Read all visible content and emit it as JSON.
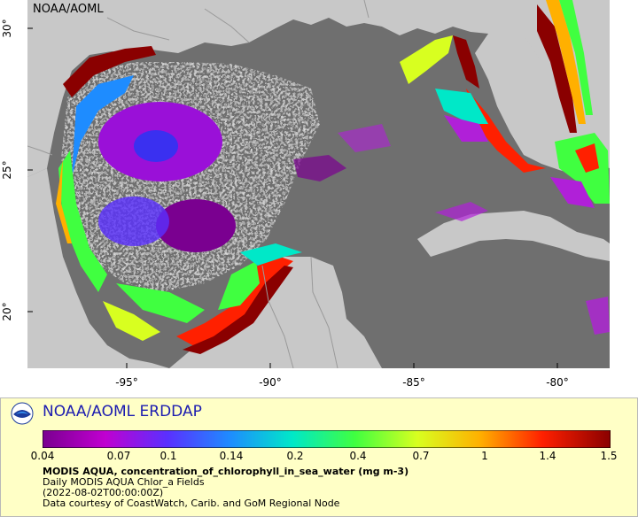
{
  "map": {
    "credit_top_left": "NOAA/AOML",
    "x_ticks": [
      {
        "label": "-95°",
        "lon": -95
      },
      {
        "label": "-90°",
        "lon": -90
      },
      {
        "label": "-85°",
        "lon": -85
      },
      {
        "label": "-80°",
        "lon": -80
      }
    ],
    "y_ticks": [
      {
        "label": "30°",
        "lat": 30
      },
      {
        "label": "25°",
        "lat": 25
      },
      {
        "label": "20°",
        "lat": 20
      }
    ],
    "lon_range": [
      -98.5,
      -78.2
    ],
    "lat_range": [
      18.0,
      31.0
    ],
    "colors": {
      "ocean_no_data": "#6f6f6f",
      "land": "#c8c8c8",
      "borders": "#9a9a9a"
    }
  },
  "legend": {
    "brand": "NOAA/AOML ERDDAP",
    "colorbar_labels": [
      "0.04",
      "0.07",
      "0.1",
      "0.14",
      "0.2",
      "0.4",
      "0.7",
      "1",
      "1.4",
      "1.5"
    ],
    "colorbar_colors": [
      "#7a0090",
      "#c000d0",
      "#5a30ff",
      "#1e8cff",
      "#00e8c8",
      "#40ff40",
      "#d8ff20",
      "#ffb000",
      "#ff2000",
      "#8a0000"
    ],
    "title_line": "MODIS AQUA, concentration_of_chlorophyll_in_sea_water (mg m-3)",
    "dataset_line": "Daily MODIS AQUA Chlor_a Fields",
    "time_line": "(2022-08-02T00:00:00Z)",
    "courtesy_line": "Data courtesy of CoastWatch, Carib. and GoM Regional Node"
  }
}
